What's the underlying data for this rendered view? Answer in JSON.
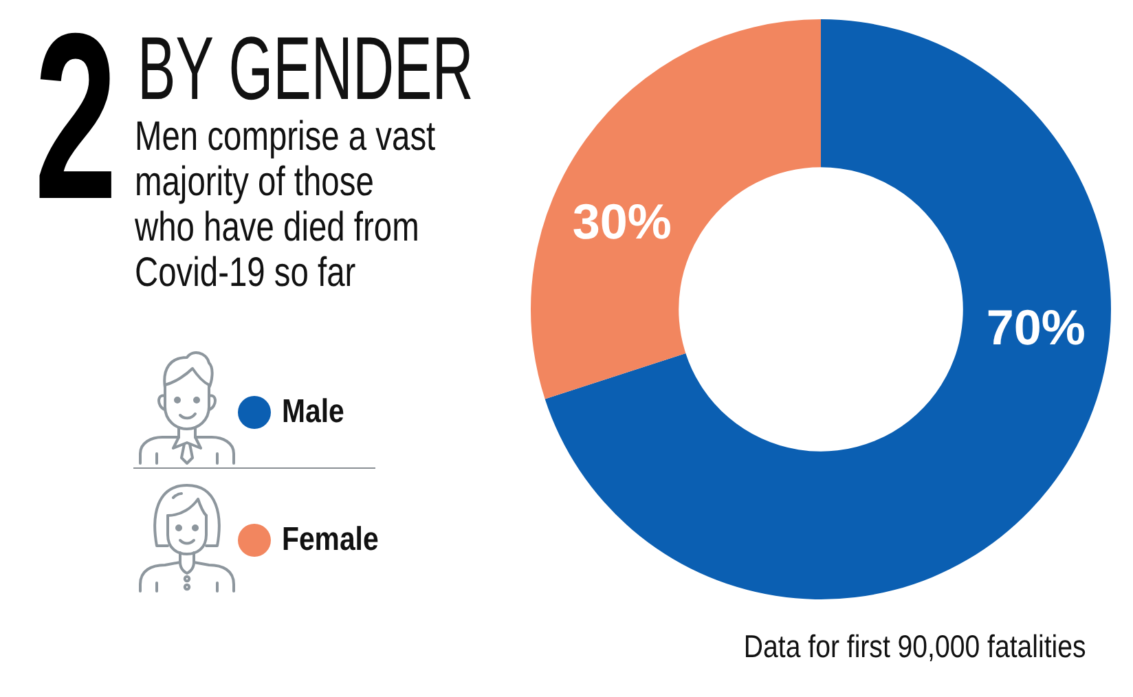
{
  "chart_data": {
    "type": "donut",
    "title": "BY GENDER",
    "subtitle": "Men comprise a vast majority of those who have died from Covid-19 so far",
    "categories": [
      "Male",
      "Female"
    ],
    "values": [
      70,
      30
    ],
    "colors": [
      "#0b5fb2",
      "#f2865f"
    ],
    "value_labels": [
      "70%",
      "30%"
    ],
    "legend": "left",
    "annotations": [
      "2",
      "Data for first 90,000 fatalities"
    ]
  }
}
